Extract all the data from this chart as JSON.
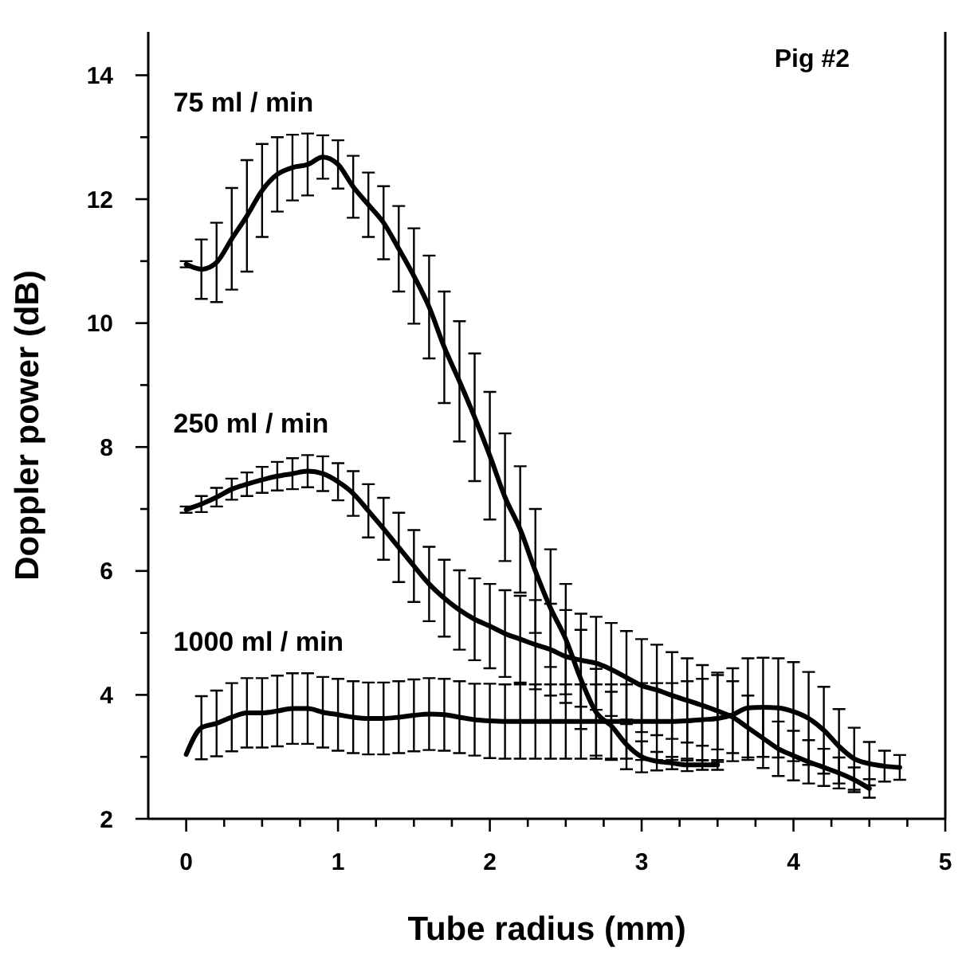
{
  "chart_data": {
    "type": "line",
    "xlabel": "Tube radius (mm)",
    "ylabel": "Doppler power (dB)",
    "annotations": [
      "Pig #2"
    ],
    "xlim": [
      -0.25,
      5
    ],
    "ylim": [
      2,
      14.7
    ],
    "xticks": [
      0,
      {
        "value": 0.25,
        "label": null
      },
      {
        "value": 0.5,
        "label": null
      },
      {
        "value": 0.75,
        "label": null
      },
      1,
      {
        "value": 1.25,
        "label": null
      },
      {
        "value": 1.5,
        "label": null
      },
      {
        "value": 1.75,
        "label": null
      },
      2,
      {
        "value": 2.25,
        "label": null
      },
      {
        "value": 2.5,
        "label": null
      },
      {
        "value": 2.75,
        "label": null
      },
      3,
      {
        "value": 3.25,
        "label": null
      },
      {
        "value": 3.5,
        "label": null
      },
      {
        "value": 3.75,
        "label": null
      },
      4,
      {
        "value": 4.25,
        "label": null
      },
      {
        "value": 4.5,
        "label": null
      },
      {
        "value": 4.75,
        "label": null
      },
      5
    ],
    "yticks": [
      2,
      {
        "value": 3,
        "label": null
      },
      4,
      {
        "value": 5,
        "label": null
      },
      6,
      {
        "value": 7,
        "label": null
      },
      8,
      {
        "value": 9,
        "label": null
      },
      10,
      {
        "value": 11,
        "label": null
      },
      12,
      {
        "value": 13,
        "label": null
      },
      14
    ],
    "grid": false,
    "line_style": "solid",
    "series": [
      {
        "name": "75 ml / min",
        "color": "#000000",
        "x": [
          0,
          0.1,
          0.2,
          0.3,
          0.4,
          0.5,
          0.6,
          0.7,
          0.8,
          0.9,
          1.0,
          1.1,
          1.2,
          1.3,
          1.4,
          1.5,
          1.6,
          1.7,
          1.8,
          1.9,
          2.0,
          2.1,
          2.2,
          2.3,
          2.4,
          2.5,
          2.6,
          2.7,
          2.8,
          2.9,
          3.0,
          3.1,
          3.2,
          3.3,
          3.4,
          3.5
        ],
        "values": [
          10.95,
          10.87,
          10.98,
          11.36,
          11.73,
          12.14,
          12.4,
          12.51,
          12.56,
          12.68,
          12.56,
          12.2,
          11.91,
          11.62,
          11.2,
          10.76,
          10.26,
          9.61,
          9.06,
          8.48,
          7.86,
          7.19,
          6.67,
          6.0,
          5.4,
          4.9,
          4.25,
          3.72,
          3.5,
          3.2,
          3.0,
          2.93,
          2.9,
          2.87,
          2.87,
          2.87
        ],
        "errors": [
          0.05,
          0.48,
          0.64,
          0.82,
          0.9,
          0.75,
          0.6,
          0.53,
          0.5,
          0.35,
          0.39,
          0.5,
          0.52,
          0.59,
          0.69,
          0.77,
          0.83,
          0.9,
          0.97,
          1.03,
          1.03,
          1.03,
          1.02,
          1.0,
          0.95,
          0.89,
          0.8,
          0.7,
          0.55,
          0.4,
          0.25,
          0.15,
          0.1,
          0.1,
          0.08,
          0.08
        ]
      },
      {
        "name": "250 ml / min",
        "color": "#000000",
        "x": [
          0,
          0.1,
          0.2,
          0.3,
          0.4,
          0.5,
          0.6,
          0.7,
          0.8,
          0.9,
          1.0,
          1.1,
          1.2,
          1.3,
          1.4,
          1.5,
          1.6,
          1.7,
          1.8,
          1.9,
          2.0,
          2.1,
          2.2,
          2.3,
          2.4,
          2.5,
          2.6,
          2.7,
          2.8,
          2.9,
          3.0,
          3.1,
          3.2,
          3.3,
          3.4,
          3.5,
          3.6,
          3.7,
          3.8,
          3.9,
          4.0,
          4.1,
          4.2,
          4.3,
          4.4,
          4.5
        ],
        "values": [
          6.99,
          7.08,
          7.19,
          7.32,
          7.4,
          7.47,
          7.53,
          7.57,
          7.61,
          7.57,
          7.44,
          7.25,
          6.97,
          6.68,
          6.38,
          6.08,
          5.79,
          5.56,
          5.37,
          5.22,
          5.11,
          4.99,
          4.9,
          4.81,
          4.73,
          4.62,
          4.56,
          4.51,
          4.41,
          4.28,
          4.15,
          4.08,
          3.99,
          3.91,
          3.83,
          3.74,
          3.64,
          3.47,
          3.3,
          3.13,
          3.02,
          2.92,
          2.83,
          2.74,
          2.63,
          2.49
        ],
        "errors": [
          0.05,
          0.13,
          0.15,
          0.17,
          0.19,
          0.21,
          0.23,
          0.25,
          0.26,
          0.28,
          0.3,
          0.36,
          0.43,
          0.5,
          0.56,
          0.58,
          0.6,
          0.62,
          0.64,
          0.66,
          0.68,
          0.7,
          0.7,
          0.72,
          0.74,
          0.75,
          0.75,
          0.75,
          0.75,
          0.75,
          0.75,
          0.73,
          0.7,
          0.68,
          0.65,
          0.62,
          0.58,
          0.52,
          0.48,
          0.44,
          0.4,
          0.35,
          0.3,
          0.25,
          0.2,
          0.15
        ]
      },
      {
        "name": "1000 ml / min",
        "color": "#000000",
        "x": [
          0,
          0.1,
          0.2,
          0.3,
          0.4,
          0.5,
          0.6,
          0.7,
          0.8,
          0.9,
          1.0,
          1.1,
          1.2,
          1.3,
          1.4,
          1.5,
          1.6,
          1.7,
          1.8,
          1.9,
          2.0,
          2.1,
          2.2,
          2.3,
          2.4,
          2.5,
          2.6,
          2.7,
          2.8,
          2.9,
          3.0,
          3.1,
          3.2,
          3.3,
          3.4,
          3.5,
          3.6,
          3.7,
          3.8,
          3.9,
          4.0,
          4.1,
          4.2,
          4.3,
          4.4,
          4.5,
          4.6,
          4.7
        ],
        "values": [
          3.04,
          3.47,
          3.54,
          3.64,
          3.71,
          3.71,
          3.74,
          3.78,
          3.78,
          3.72,
          3.68,
          3.64,
          3.62,
          3.62,
          3.64,
          3.67,
          3.69,
          3.68,
          3.64,
          3.6,
          3.58,
          3.57,
          3.57,
          3.57,
          3.57,
          3.57,
          3.57,
          3.57,
          3.57,
          3.57,
          3.57,
          3.57,
          3.57,
          3.58,
          3.6,
          3.62,
          3.68,
          3.79,
          3.8,
          3.79,
          3.73,
          3.62,
          3.43,
          3.17,
          2.97,
          2.89,
          2.85,
          2.83
        ],
        "errors": [
          null,
          0.51,
          0.53,
          0.55,
          0.56,
          0.56,
          0.57,
          0.57,
          0.57,
          0.57,
          0.58,
          0.58,
          0.58,
          0.58,
          0.58,
          0.58,
          0.58,
          0.58,
          0.58,
          0.58,
          0.6,
          0.6,
          0.6,
          0.6,
          0.6,
          0.6,
          0.6,
          0.6,
          0.6,
          0.6,
          0.62,
          0.62,
          0.62,
          0.64,
          0.66,
          0.7,
          0.75,
          0.8,
          0.8,
          0.8,
          0.8,
          0.75,
          0.7,
          0.6,
          0.5,
          0.35,
          0.25,
          0.2
        ]
      }
    ]
  }
}
